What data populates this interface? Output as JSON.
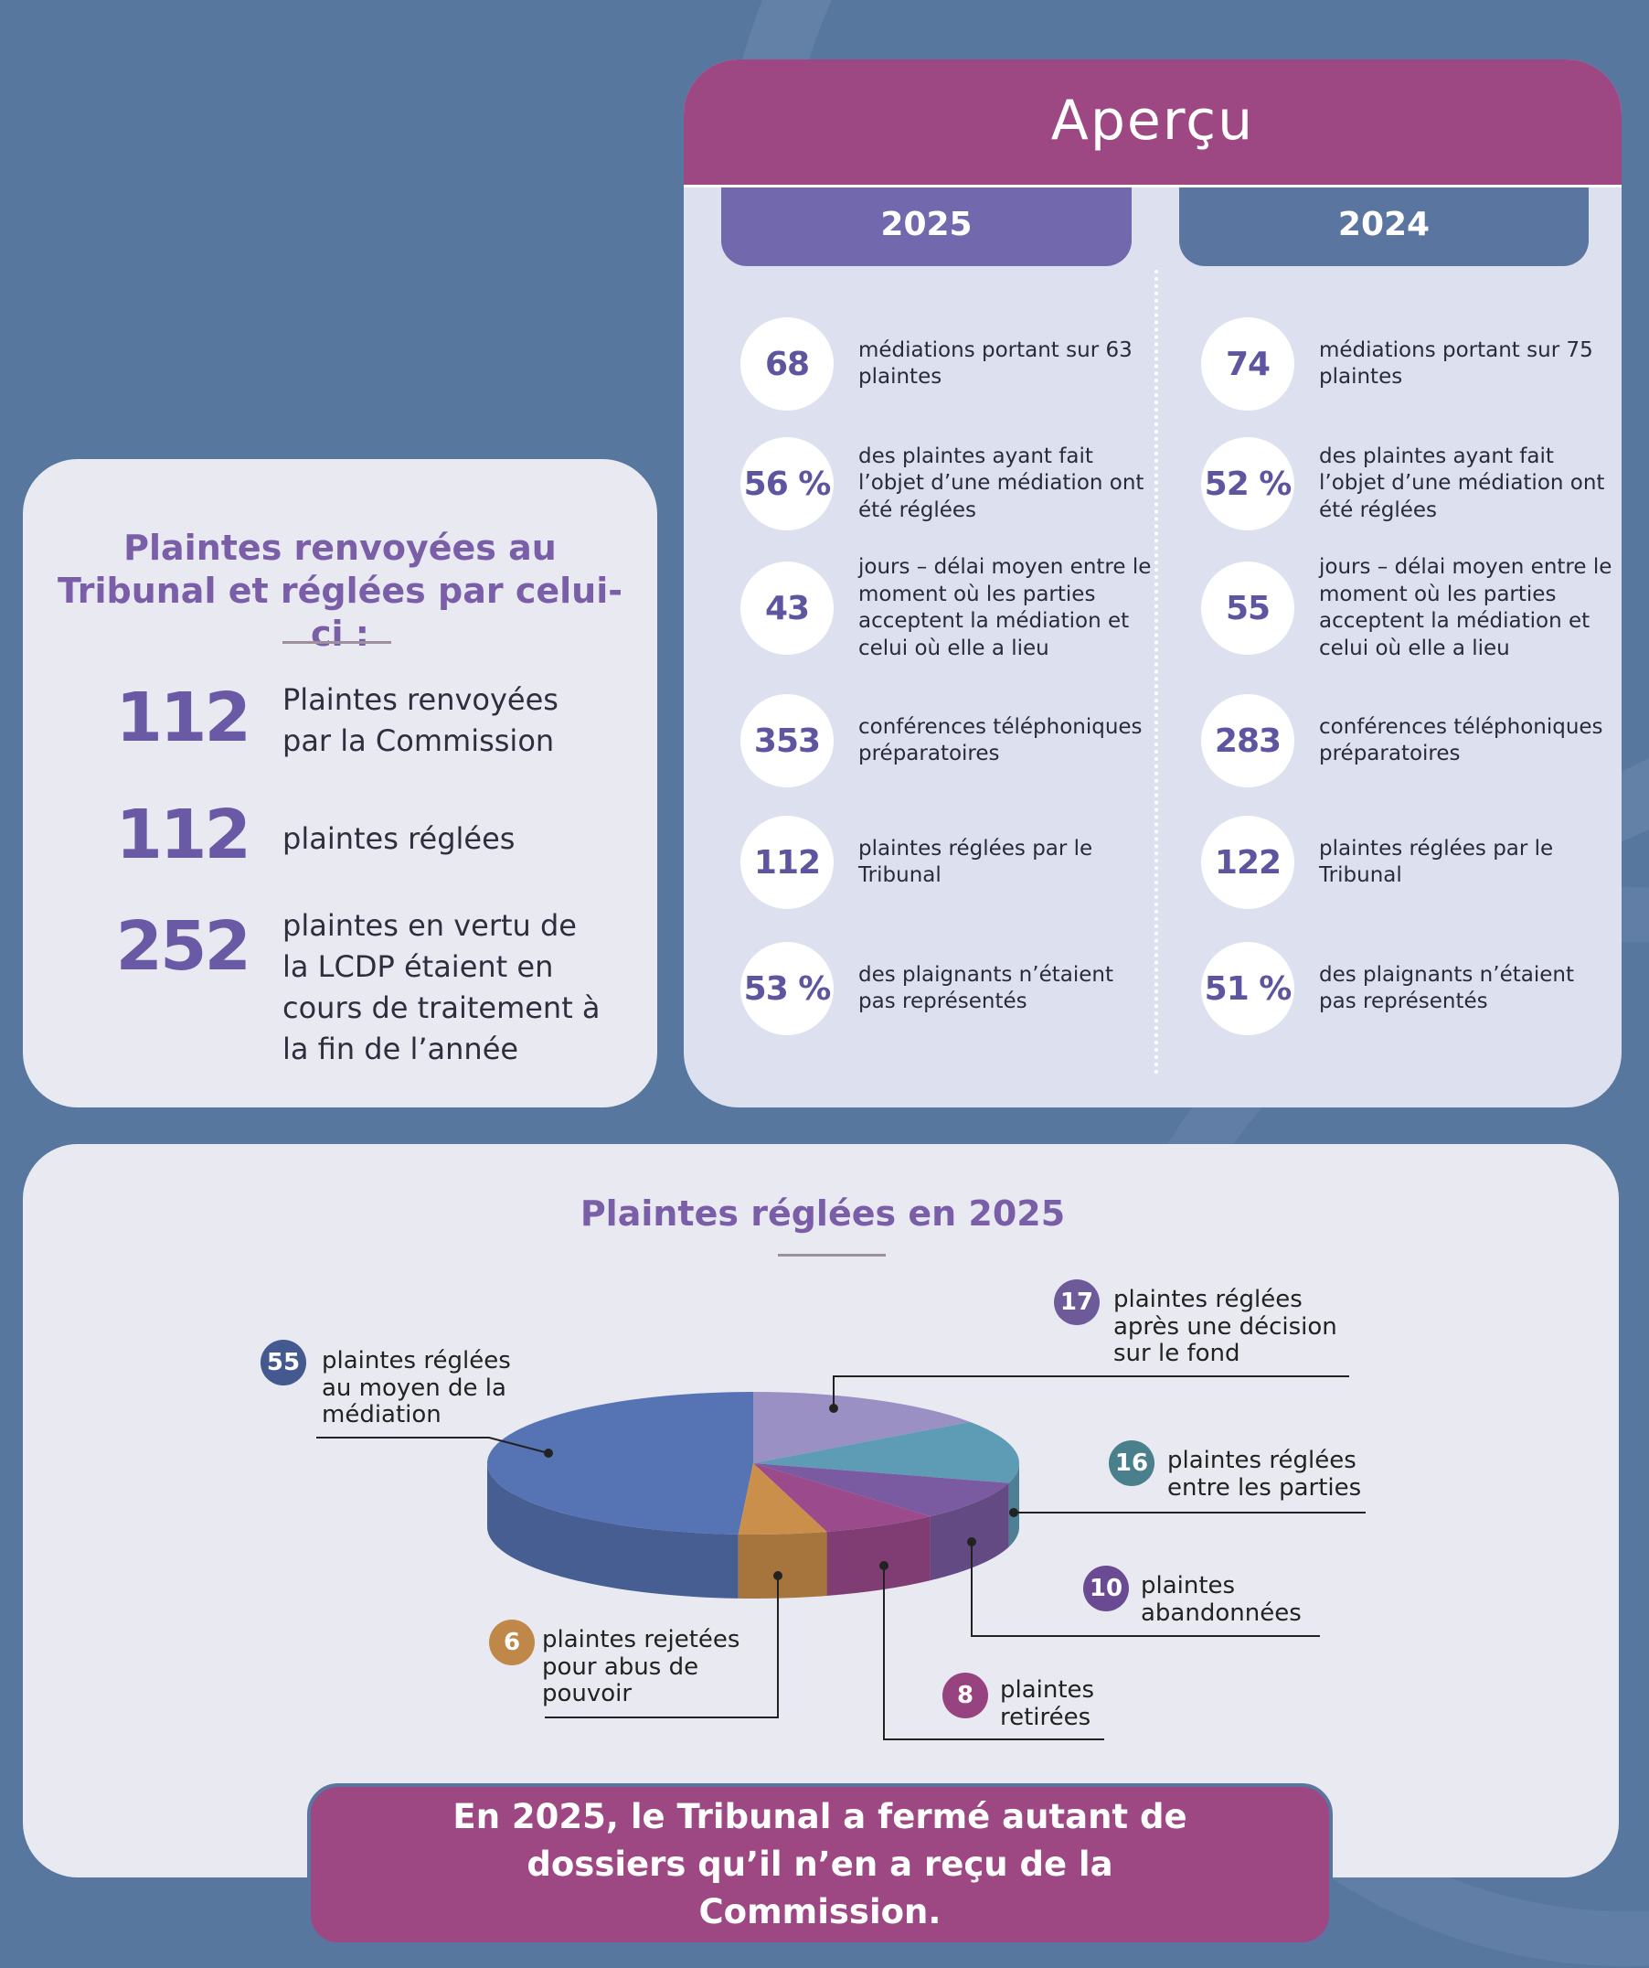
{
  "referred": {
    "title": "Plaintes renvoyées au Tribunal et réglées par celui-ci :",
    "items": [
      {
        "value": "112",
        "text": "Plaintes renvoyées par la Commission"
      },
      {
        "value": "112",
        "text": "plaintes réglées"
      },
      {
        "value": "252",
        "text": "plaintes en vertu de la LCDP étaient en cours de traitement à la fin de l’année"
      }
    ]
  },
  "apercu": {
    "title": "Aperçu",
    "years": [
      {
        "year": "2025",
        "stats": [
          {
            "value": "68",
            "text": "médiations portant sur 63 plaintes"
          },
          {
            "value": "56 %",
            "text": "des plaintes ayant fait l’objet d’une médiation ont été réglées"
          },
          {
            "value": "43",
            "text": "jours – délai moyen entre le moment où les parties acceptent la médiation et celui où elle a lieu"
          },
          {
            "value": "353",
            "text": "conférences téléphoniques préparatoires"
          },
          {
            "value": "112",
            "text": "plaintes réglées par le Tribunal"
          },
          {
            "value": "53 %",
            "text": "des plaignants n’étaient pas représentés"
          }
        ]
      },
      {
        "year": "2024",
        "stats": [
          {
            "value": "74",
            "text": "médiations portant sur 75 plaintes"
          },
          {
            "value": "52 %",
            "text": "des plaintes ayant fait l’objet d’une médiation ont été réglées"
          },
          {
            "value": "55",
            "text": "jours – délai moyen entre le moment où les parties acceptent la médiation et celui où elle a lieu"
          },
          {
            "value": "283",
            "text": "conférences téléphoniques préparatoires"
          },
          {
            "value": "122",
            "text": "plaintes réglées par le Tribunal"
          },
          {
            "value": "51 %",
            "text": "des plaignants n’étaient pas représentés"
          }
        ]
      }
    ]
  },
  "chart_data": {
    "type": "pie",
    "title": "Plaintes réglées en 2025",
    "categories": [
      "plaintes réglées au moyen de la médiation",
      "plaintes réglées après une décision sur le fond",
      "plaintes réglées entre les parties",
      "plaintes abandonnées",
      "plaintes retirées",
      "plaintes rejetées pour abus de pouvoir"
    ],
    "values": [
      55,
      17,
      16,
      10,
      8,
      6
    ],
    "colors": [
      "#5673b3",
      "#9a90c4",
      "#5e9cb5",
      "#7a5aa0",
      "#9b4a8c",
      "#c98f4b"
    ]
  },
  "banner": {
    "text": "En 2025, le Tribunal a fermé autant de dossiers qu’il n’en a reçu de la Commission."
  }
}
